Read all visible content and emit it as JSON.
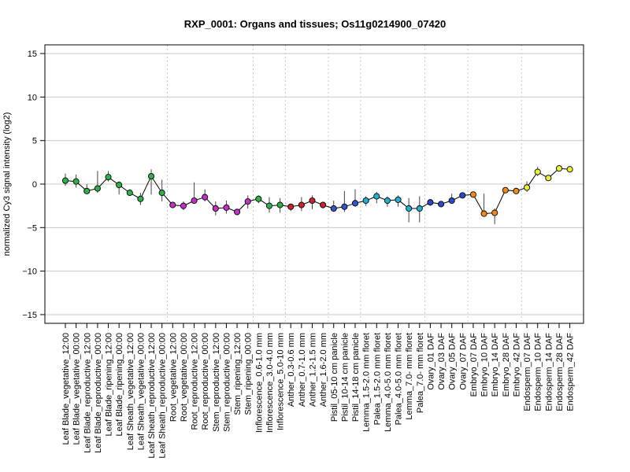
{
  "chart_data": {
    "type": "line",
    "title": "RXP_0001: Organs and tissues; Os11g0214900_07420",
    "ylabel": "normalized Cy3 signal intensity (log2)",
    "xlabel": "",
    "ylim": [
      -16,
      16
    ],
    "yticks": [
      -15,
      -10,
      -5,
      0,
      5,
      10,
      15
    ],
    "grid": true,
    "categories": [
      "Leaf Blade_vegetative_12:00",
      "Leaf Blade_vegetative_00:00",
      "Leaf Blade_reproductive_12:00",
      "Leaf Blade_reproductive_00:00",
      "Leaf Blade_ripening_12:00",
      "Leaf Blade_ripening_00:00",
      "Leaf Sheath_vegetative_12:00",
      "Leaf Sheath_vegetative_00:00",
      "Leaf Sheath_reproductive_12:00",
      "Leaf Sheath_reproductive_00:00",
      "Root_vegetative_12:00",
      "Root_vegetative_00:00",
      "Root_reproductive_12:00",
      "Root_reproductive_00:00",
      "Stem_reproductive_12:00",
      "Stem_reproductive_00:00",
      "Stem_ripening_12:00",
      "Stem_ripening_00:00",
      "Inflorescence_0.6-1.0 mm",
      "Inflorescence_3.0-4.0 mm",
      "Inflorescence_5.0-10 mm",
      "Anther_0.3-0.6 mm",
      "Anther_0.7-1.0 mm",
      "Anther_1.2-1.5 mm",
      "Anther_1.6-2.0 mm",
      "Pistil_05-10 cm panicle",
      "Pistil_10-14 cm panicle",
      "Pistil_14-18 cm panicle",
      "Lemma_1.5-2.0 mm floret",
      "Palea_1.5-2.0 mm floret",
      "Lemma_4.0-5.0 mm floret",
      "Palea_4.0-5.0 mm floret",
      "Lemma_7.0- mm floret",
      "Palea_7.0- mm floret",
      "Ovary_01 DAF",
      "Ovary_03 DAF",
      "Ovary_05 DAF",
      "Ovary_07 DAF",
      "Embryo_07 DAF",
      "Embryo_10 DAF",
      "Embryo_14 DAF",
      "Embryo_28 DAF",
      "Embryo_42 DAF",
      "Endosperm_07 DAF",
      "Endosperm_10 DAF",
      "Endosperm_14 DAF",
      "Endosperm_28 DAF",
      "Endosperm_42 DAF"
    ],
    "values": [
      0.4,
      0.3,
      -0.8,
      -0.5,
      0.8,
      -0.1,
      -1.0,
      -1.7,
      0.9,
      -1.0,
      -2.4,
      -2.5,
      -1.9,
      -1.5,
      -2.8,
      -2.7,
      -3.2,
      -2.0,
      -1.7,
      -2.5,
      -2.4,
      -2.6,
      -2.4,
      -1.9,
      -2.4,
      -2.8,
      -2.6,
      -2.2,
      -1.9,
      -1.4,
      -1.9,
      -1.8,
      -2.8,
      -2.8,
      -2.1,
      -2.3,
      -1.9,
      -1.3,
      -1.2,
      -3.4,
      -3.3,
      -0.7,
      -0.8,
      -0.4,
      1.4,
      0.7,
      1.8,
      1.7
    ],
    "error_low": [
      -0.2,
      -0.4,
      -1.1,
      -1.0,
      0.3,
      -1.2,
      -1.2,
      -2.4,
      -1.2,
      -2.0,
      -2.6,
      -3.0,
      -2.1,
      -2.0,
      -3.6,
      -3.4,
      -3.4,
      -2.8,
      -2.2,
      -3.3,
      -3.3,
      -3.1,
      -3.1,
      -2.9,
      -2.8,
      -3.2,
      -3.2,
      -2.6,
      -2.5,
      -2.2,
      -2.6,
      -2.6,
      -4.4,
      -4.4,
      -2.5,
      -2.5,
      -2.1,
      -1.5,
      -1.4,
      -3.6,
      -4.6,
      -0.9,
      -1.0,
      -0.9,
      0.9,
      0.4,
      1.6,
      1.5
    ],
    "error_high": [
      1.2,
      1.1,
      0.0,
      1.5,
      1.5,
      0.3,
      -0.6,
      -1.0,
      1.7,
      0.5,
      -2.1,
      -2.0,
      0.2,
      -0.6,
      -2.0,
      -1.9,
      -2.9,
      -1.3,
      -1.3,
      -1.5,
      -1.6,
      -2.3,
      -1.5,
      -1.3,
      -2.1,
      -1.9,
      -0.8,
      -0.6,
      -1.4,
      -0.9,
      -1.4,
      -1.3,
      -1.6,
      -1.4,
      -1.8,
      -2.0,
      -1.1,
      -1.0,
      -1.0,
      -1.1,
      -2.8,
      -0.5,
      -0.5,
      0.3,
      2.0,
      1.0,
      2.0,
      1.9
    ],
    "colors": [
      "#2db24a",
      "#2db24a",
      "#2db24a",
      "#2db24a",
      "#2db24a",
      "#2db24a",
      "#2db24a",
      "#2db24a",
      "#2db24a",
      "#2db24a",
      "#c42fc8",
      "#c42fc8",
      "#c42fc8",
      "#c42fc8",
      "#c42fc8",
      "#c42fc8",
      "#c42fc8",
      "#c42fc8",
      "#2db24a",
      "#2db24a",
      "#2db24a",
      "#c8242e",
      "#c8242e",
      "#c8242e",
      "#c8242e",
      "#3554c9",
      "#3554c9",
      "#3554c9",
      "#1eb2d2",
      "#1eb2d2",
      "#1eb2d2",
      "#1eb2d2",
      "#1eb2d2",
      "#1eb2d2",
      "#2a49c8",
      "#2a49c8",
      "#2a49c8",
      "#2a49c8",
      "#f08a1a",
      "#f08a1a",
      "#f08a1a",
      "#f08a1a",
      "#f08a1a",
      "#e9ee3a",
      "#e9ee3a",
      "#e9ee3a",
      "#e9ee3a",
      "#e9ee3a"
    ],
    "group_separators_after": [
      9,
      17,
      20,
      24,
      27,
      33,
      37,
      42
    ]
  }
}
